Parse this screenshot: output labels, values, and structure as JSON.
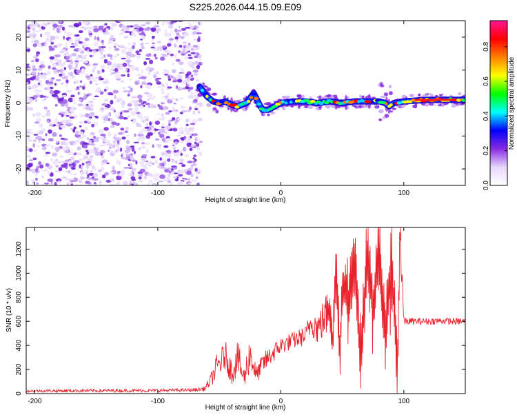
{
  "title": "S225.2026.044.15.09.E09",
  "chart_data": [
    {
      "type": "heatmap",
      "xlabel": "Height of straight line (km)",
      "ylabel": "Frequency (Hz)",
      "xlim": [
        -207,
        150
      ],
      "ylim": [
        -25,
        25
      ],
      "xticks": [
        -200,
        -100,
        0,
        100
      ],
      "yticks": [
        -20,
        -10,
        0,
        10,
        20
      ],
      "noise_region_x": [
        -207,
        -65
      ],
      "signal_ridge": {
        "x": [
          -66,
          -60,
          -55,
          -50,
          -45,
          -40,
          -35,
          -28,
          -22,
          -18,
          -15,
          -10,
          -5,
          0,
          10,
          20,
          30,
          40,
          50,
          60,
          70,
          80,
          85,
          88,
          92,
          100,
          120,
          140,
          150
        ],
        "frequency": [
          5,
          2,
          0.5,
          0,
          0.5,
          -0.5,
          -1,
          0,
          3,
          0,
          -2,
          -2,
          -1,
          0,
          0.5,
          0.5,
          0,
          0.5,
          0,
          0.5,
          0.5,
          0.5,
          0,
          -1,
          0,
          0.5,
          1,
          1,
          1
        ]
      },
      "colorbar": {
        "label": "Normalized spectral amplitude",
        "range": [
          0.0,
          0.95
        ],
        "ticks": [
          "0.0",
          "0.2",
          "0.4",
          "0.6",
          "0.8"
        ],
        "colors": [
          "#ffffff",
          "#e6d6fb",
          "#8a2be2",
          "#0000ff",
          "#00ffff",
          "#00ff00",
          "#ffff00",
          "#ff8000",
          "#ff0000",
          "#ff1493"
        ]
      }
    },
    {
      "type": "line",
      "xlabel": "Height of straight line (km)",
      "ylabel": "SNR (10 * v/v)",
      "xlim": [
        -207,
        150
      ],
      "ylim": [
        0,
        1380
      ],
      "xticks": [
        -200,
        -100,
        0,
        100
      ],
      "yticks": [
        0,
        200,
        400,
        600,
        800,
        1000,
        1200
      ],
      "line_color": "#e8222a",
      "series": [
        {
          "name": "SNR",
          "x": [
            -207,
            -150,
            -100,
            -70,
            -62,
            -58,
            -52,
            -45,
            -40,
            -35,
            -30,
            -25,
            -20,
            -15,
            -10,
            -5,
            0,
            10,
            20,
            25,
            30,
            35,
            40,
            42,
            45,
            48,
            50,
            55,
            60,
            65,
            70,
            75,
            80,
            85,
            90,
            95,
            97,
            100,
            110,
            120,
            130,
            140,
            150
          ],
          "y": [
            22,
            24,
            25,
            30,
            40,
            90,
            220,
            320,
            180,
            300,
            120,
            340,
            150,
            240,
            300,
            350,
            400,
            440,
            480,
            600,
            540,
            620,
            700,
            400,
            1000,
            300,
            900,
            750,
            1100,
            300,
            1150,
            700,
            1250,
            500,
            1100,
            200,
            1375,
            600,
            600,
            600,
            605,
            600,
            600
          ],
          "spread": [
            12,
            14,
            14,
            14,
            20,
            40,
            110,
            120,
            110,
            150,
            90,
            160,
            70,
            90,
            80,
            80,
            70,
            70,
            80,
            120,
            140,
            170,
            220,
            250,
            380,
            280,
            350,
            300,
            380,
            330,
            420,
            360,
            420,
            380,
            400,
            380,
            380,
            30,
            28,
            28,
            28,
            28,
            28
          ]
        }
      ]
    }
  ]
}
